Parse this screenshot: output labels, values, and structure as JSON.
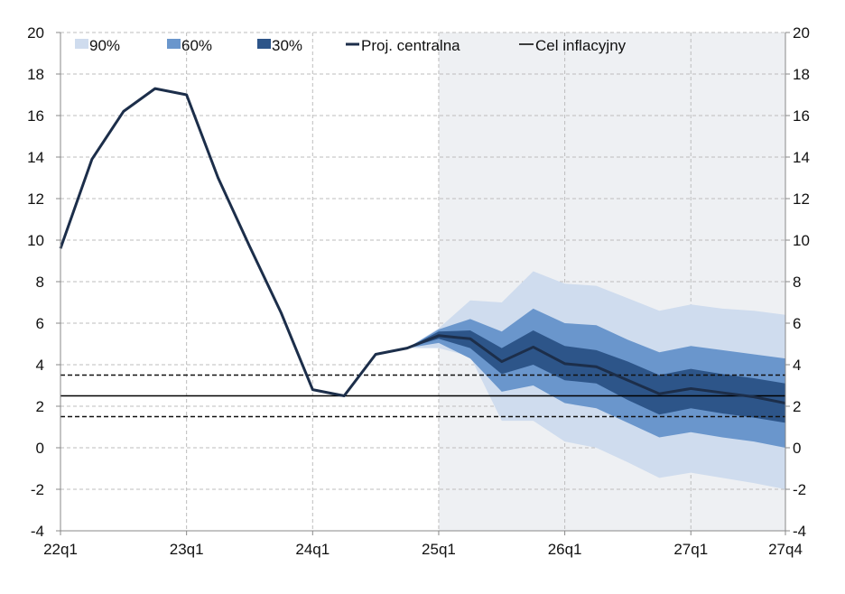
{
  "chart_data": {
    "type": "area",
    "title": "",
    "xlabel": "",
    "ylabel": "",
    "ylim": [
      -4,
      20
    ],
    "yticks": [
      -4,
      -2,
      0,
      2,
      4,
      6,
      8,
      10,
      12,
      14,
      16,
      18,
      20
    ],
    "grid": true,
    "legend_placement": "top",
    "quarters": [
      "22q1",
      "22q2",
      "22q3",
      "22q4",
      "23q1",
      "23q2",
      "23q3",
      "23q4",
      "24q1",
      "24q2",
      "24q3",
      "24q4",
      "25q1",
      "25q2",
      "25q3",
      "25q4",
      "26q1",
      "26q2",
      "26q3",
      "26q4",
      "27q1",
      "27q2",
      "27q3",
      "27q4"
    ],
    "xtick_labels": [
      "22q1",
      "23q1",
      "24q1",
      "25q1",
      "26q1",
      "27q1",
      "27q4"
    ],
    "xtick_indices": [
      0,
      4,
      8,
      12,
      16,
      20,
      23
    ],
    "projection_start_index": 12,
    "central": [
      9.6,
      13.9,
      16.2,
      17.3,
      17.0,
      13.0,
      9.7,
      6.5,
      2.8,
      2.5,
      4.5,
      4.8,
      5.4,
      5.25,
      4.15,
      4.85,
      4.05,
      3.9,
      3.25,
      2.6,
      2.85,
      2.65,
      2.45,
      2.15
    ],
    "fan_start_index": 11,
    "bands": [
      {
        "name": "90%",
        "color": "#cfdcee",
        "upper": [
          4.8,
          5.75,
          7.1,
          7.0,
          8.5,
          7.9,
          7.8,
          7.2,
          6.6,
          6.9,
          6.7,
          6.6,
          6.4
        ],
        "lower": [
          4.8,
          4.8,
          4.4,
          1.3,
          1.3,
          0.3,
          0.0,
          -0.7,
          -1.45,
          -1.2,
          -1.45,
          -1.7,
          -2.0
        ]
      },
      {
        "name": "60%",
        "color": "#6a96cc",
        "upper": [
          4.8,
          5.7,
          6.2,
          5.6,
          6.7,
          6.0,
          5.9,
          5.2,
          4.6,
          4.9,
          4.7,
          4.5,
          4.3
        ],
        "lower": [
          4.8,
          5.05,
          4.3,
          2.7,
          3.0,
          2.15,
          1.9,
          1.2,
          0.5,
          0.75,
          0.5,
          0.3,
          0.0
        ]
      },
      {
        "name": "30%",
        "color": "#2d5589",
        "upper": [
          4.8,
          5.6,
          5.65,
          4.8,
          5.65,
          4.9,
          4.7,
          4.15,
          3.5,
          3.8,
          3.55,
          3.35,
          3.1
        ],
        "lower": [
          4.8,
          5.25,
          4.8,
          3.55,
          4.0,
          3.25,
          3.1,
          2.3,
          1.6,
          1.9,
          1.65,
          1.45,
          1.2
        ]
      }
    ],
    "target": 2.5,
    "target_band": [
      1.5,
      3.5
    ],
    "legend": [
      "90%",
      "60%",
      "30%",
      "Proj. centralna",
      "Cel inflacyjny"
    ],
    "colors": {
      "central": "#1c2e4a",
      "target": "#000000",
      "shade": "#eef0f3",
      "grid": "#bdbdbd"
    }
  }
}
